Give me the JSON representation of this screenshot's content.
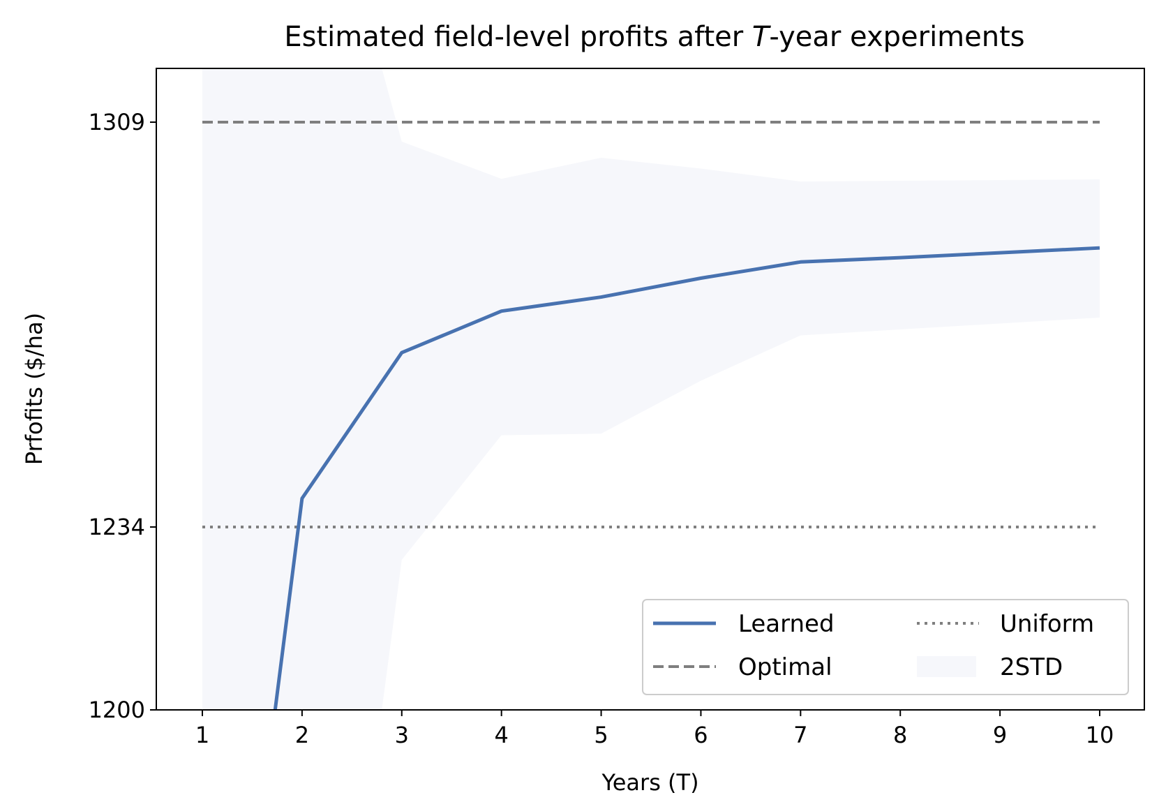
{
  "chart_data": {
    "type": "line",
    "title": {
      "prefix": "Estimated field-level profits after ",
      "italic": "T",
      "suffix": "-year experiments"
    },
    "xlabel": "Years (T)",
    "ylabel": "Prfofits ($/ha)",
    "x": [
      1,
      2,
      3,
      4,
      5,
      6,
      7,
      8,
      9,
      10
    ],
    "xticks": [
      "1",
      "2",
      "3",
      "4",
      "5",
      "6",
      "7",
      "8",
      "9",
      "10"
    ],
    "yticks": [
      "1200",
      "1234",
      "1309"
    ],
    "ytick_values": [
      1200,
      1234,
      1309
    ],
    "xlim": [
      0.55,
      10.45
    ],
    "ylim": [
      1200,
      1319
    ],
    "grid": false,
    "legend_placement": "lower-right",
    "series": [
      {
        "name": "Learned",
        "style": "solid",
        "color": "#4872b0",
        "x": [
          1.73,
          2,
          3,
          4,
          5,
          6,
          7,
          8,
          9,
          10
        ],
        "values": [
          1200,
          1239.3,
          1266.3,
          1274.0,
          1276.6,
          1280.1,
          1283.1,
          1283.9,
          1284.8,
          1285.7
        ]
      },
      {
        "name": "Optimal",
        "style": "dashed",
        "color": "#7f7f7f",
        "x": [
          1,
          10
        ],
        "values": [
          1309,
          1309
        ]
      },
      {
        "name": "Uniform",
        "style": "dotted",
        "color": "#7f7f7f",
        "x": [
          1,
          10
        ],
        "values": [
          1234,
          1234
        ]
      },
      {
        "name": "2STD",
        "style": "band",
        "color": "#f6f7fb",
        "x": [
          1,
          2.8,
          3,
          4,
          5,
          6,
          7,
          10
        ],
        "upper": [
          1319,
          1319,
          1305.4,
          1298.5,
          1302.4,
          1300.4,
          1298.0,
          1298.4
        ],
        "lower_x": [
          1,
          2.8,
          3,
          4,
          5,
          6,
          7,
          10
        ],
        "lower": [
          1200,
          1200,
          1227.9,
          1251.0,
          1251.3,
          1261.1,
          1269.5,
          1272.8
        ]
      }
    ]
  }
}
